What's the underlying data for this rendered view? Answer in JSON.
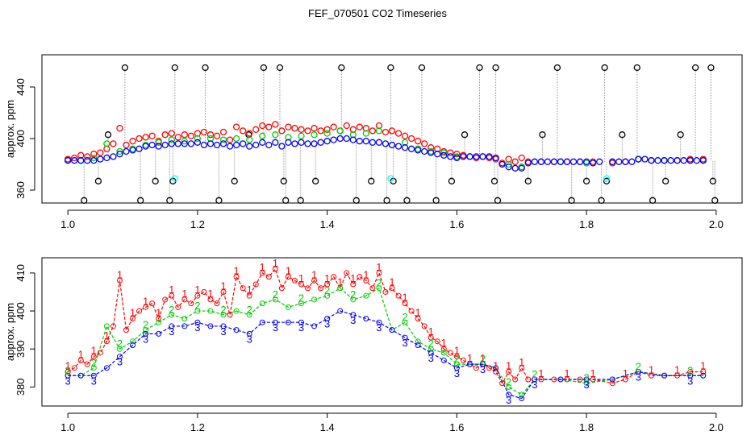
{
  "title": "FEF_070501  CO2 Timeseries",
  "colors": {
    "black": "#000000",
    "red": "#ff0000",
    "green": "#00cc00",
    "blue": "#0000ff",
    "cyan": "#00ffff",
    "gray": "#888888"
  },
  "chart_data": [
    {
      "type": "scatter",
      "title": "FEF_070501  CO2 Timeseries",
      "xlabel": "",
      "ylabel": "approx. ppm",
      "xlim": [
        0.96,
        2.04
      ],
      "ylim": [
        350,
        465
      ],
      "xticks": [
        1.0,
        1.2,
        1.4,
        1.6,
        1.8,
        2.0
      ],
      "xtick_labels": [
        "1.0",
        "1.2",
        "1.4",
        "1.6",
        "1.8",
        "2.0"
      ],
      "yticks": [
        360,
        400,
        440
      ],
      "ytick_labels": [
        "360",
        "400",
        "440"
      ],
      "series": [
        {
          "name": "black",
          "marker": "circle",
          "color": "#000000",
          "x": [
            1.025,
            1.047,
            1.062,
            1.088,
            1.112,
            1.135,
            1.157,
            1.162,
            1.165,
            1.212,
            1.233,
            1.257,
            1.279,
            1.302,
            1.327,
            1.333,
            1.336,
            1.359,
            1.382,
            1.422,
            1.445,
            1.468,
            1.492,
            1.498,
            1.502,
            1.523,
            1.546,
            1.568,
            1.592,
            1.612,
            1.635,
            1.658,
            1.66,
            1.663,
            1.71,
            1.732,
            1.755,
            1.777,
            1.8,
            1.823,
            1.828,
            1.831,
            1.855,
            1.878,
            1.902,
            1.922,
            1.945,
            1.968,
            1.992,
            1.995,
            1.998
          ],
          "y": [
            352,
            367,
            403,
            455,
            352,
            367,
            352,
            367,
            455,
            455,
            352,
            367,
            403,
            455,
            455,
            367,
            352,
            352,
            367,
            455,
            352,
            367,
            352,
            455,
            367,
            352,
            455,
            352,
            367,
            403,
            455,
            367,
            455,
            352,
            367,
            403,
            455,
            352,
            367,
            352,
            455,
            367,
            403,
            455,
            352,
            367,
            403,
            455,
            455,
            367,
            352
          ]
        },
        {
          "name": "red",
          "marker": "circle",
          "color": "#ff0000",
          "x": [
            1.0,
            1.01,
            1.02,
            1.03,
            1.04,
            1.05,
            1.06,
            1.07,
            1.08,
            1.09,
            1.1,
            1.11,
            1.12,
            1.13,
            1.14,
            1.15,
            1.16,
            1.17,
            1.18,
            1.19,
            1.2,
            1.21,
            1.22,
            1.23,
            1.24,
            1.25,
            1.26,
            1.27,
            1.28,
            1.29,
            1.3,
            1.31,
            1.32,
            1.33,
            1.34,
            1.35,
            1.36,
            1.37,
            1.38,
            1.39,
            1.4,
            1.41,
            1.42,
            1.43,
            1.44,
            1.45,
            1.46,
            1.47,
            1.48,
            1.49,
            1.5,
            1.51,
            1.52,
            1.53,
            1.54,
            1.55,
            1.56,
            1.57,
            1.58,
            1.59,
            1.6,
            1.61,
            1.62,
            1.63,
            1.64,
            1.65,
            1.66,
            1.67,
            1.68,
            1.69,
            1.7,
            1.71,
            1.73,
            1.75,
            1.77,
            1.79,
            1.81,
            1.84,
            1.86,
            1.88,
            1.9,
            1.92,
            1.94,
            1.96,
            1.98
          ],
          "y": [
            384,
            385,
            387,
            386,
            388,
            389,
            392,
            396,
            408,
            395,
            398,
            400,
            401,
            402,
            398,
            403,
            404,
            401,
            403,
            402,
            404,
            405,
            403,
            402,
            405,
            399,
            409,
            406,
            404,
            407,
            410,
            409,
            411,
            406,
            409,
            408,
            407,
            406,
            408,
            406,
            407,
            409,
            406,
            410,
            407,
            409,
            408,
            406,
            410,
            405,
            406,
            404,
            402,
            400,
            398,
            396,
            393,
            392,
            390,
            389,
            388,
            387,
            386,
            385,
            386,
            385,
            384,
            381,
            384,
            382,
            385,
            382,
            382,
            382,
            382,
            382,
            382,
            381,
            382,
            384,
            383,
            383,
            383,
            384,
            384
          ]
        },
        {
          "name": "green",
          "marker": "circle",
          "color": "#00cc00",
          "x": [
            1.0,
            1.02,
            1.04,
            1.06,
            1.08,
            1.1,
            1.12,
            1.14,
            1.16,
            1.18,
            1.2,
            1.22,
            1.24,
            1.26,
            1.28,
            1.3,
            1.32,
            1.34,
            1.36,
            1.38,
            1.4,
            1.42,
            1.44,
            1.46,
            1.48,
            1.5,
            1.52,
            1.54,
            1.56,
            1.58,
            1.6,
            1.62,
            1.64,
            1.66,
            1.68,
            1.7,
            1.72,
            1.76,
            1.8,
            1.84,
            1.88,
            1.92,
            1.96,
            1.98
          ],
          "y": [
            383,
            383,
            385,
            396,
            390,
            392,
            395,
            397,
            399,
            398,
            400,
            400,
            399,
            400,
            399,
            402,
            403,
            401,
            402,
            403,
            404,
            406,
            403,
            404,
            406,
            395,
            397,
            392,
            390,
            389,
            386,
            386,
            386,
            385,
            380,
            378,
            382,
            382,
            381,
            382,
            384,
            383,
            383,
            383
          ]
        },
        {
          "name": "blue",
          "marker": "circle",
          "color": "#0000ff",
          "x": [
            1.0,
            1.01,
            1.02,
            1.03,
            1.04,
            1.05,
            1.06,
            1.07,
            1.08,
            1.09,
            1.1,
            1.11,
            1.12,
            1.13,
            1.14,
            1.15,
            1.16,
            1.17,
            1.18,
            1.19,
            1.2,
            1.21,
            1.22,
            1.23,
            1.24,
            1.25,
            1.26,
            1.27,
            1.28,
            1.29,
            1.3,
            1.31,
            1.32,
            1.33,
            1.34,
            1.35,
            1.36,
            1.37,
            1.38,
            1.39,
            1.4,
            1.41,
            1.42,
            1.43,
            1.44,
            1.45,
            1.46,
            1.47,
            1.48,
            1.49,
            1.5,
            1.51,
            1.52,
            1.53,
            1.54,
            1.55,
            1.56,
            1.57,
            1.58,
            1.59,
            1.6,
            1.61,
            1.62,
            1.63,
            1.64,
            1.65,
            1.66,
            1.67,
            1.68,
            1.69,
            1.7,
            1.71,
            1.72,
            1.73,
            1.74,
            1.75,
            1.76,
            1.77,
            1.78,
            1.79,
            1.8,
            1.81,
            1.82,
            1.84,
            1.85,
            1.86,
            1.87,
            1.88,
            1.89,
            1.9,
            1.91,
            1.92,
            1.93,
            1.94,
            1.95,
            1.96,
            1.97,
            1.98
          ],
          "y": [
            383,
            383,
            383,
            383,
            383,
            384,
            385,
            386,
            388,
            390,
            391,
            392,
            394,
            395,
            394,
            395,
            396,
            396,
            396,
            396,
            397,
            395,
            396,
            395,
            396,
            394,
            395,
            396,
            394,
            395,
            397,
            395,
            397,
            394,
            397,
            396,
            397,
            396,
            396,
            397,
            398,
            399,
            400,
            400,
            399,
            398,
            398,
            397,
            397,
            396,
            395,
            394,
            393,
            392,
            391,
            390,
            389,
            388,
            387,
            386,
            385,
            386,
            386,
            386,
            386,
            386,
            385,
            380,
            378,
            377,
            377,
            381,
            382,
            382,
            382,
            382,
            382,
            382,
            382,
            382,
            382,
            381,
            382,
            382,
            382,
            382,
            382,
            384,
            384,
            383,
            383,
            383,
            383,
            383,
            383,
            383,
            383,
            383
          ]
        },
        {
          "name": "cyan",
          "marker": "circle",
          "color": "#00ffff",
          "x": [
            1.165,
            1.498,
            1.831
          ],
          "y": [
            369,
            369,
            369
          ]
        }
      ]
    },
    {
      "type": "line",
      "title": "",
      "xlabel": "",
      "ylabel": "approx. ppm",
      "xlim": [
        0.96,
        2.04
      ],
      "ylim": [
        375,
        414
      ],
      "xticks": [
        1.0,
        1.2,
        1.4,
        1.6,
        1.8,
        2.0
      ],
      "xtick_labels": [
        "1.0",
        "1.2",
        "1.4",
        "1.6",
        "1.8",
        "2.0"
      ],
      "yticks": [
        380,
        390,
        400,
        410
      ],
      "ytick_labels": [
        "380",
        "390",
        "400",
        "410"
      ],
      "series": [
        {
          "name": "1",
          "label": "1",
          "color": "#ff0000",
          "line": "dashed",
          "x": [
            1.0,
            1.01,
            1.02,
            1.03,
            1.04,
            1.05,
            1.06,
            1.07,
            1.08,
            1.09,
            1.1,
            1.11,
            1.12,
            1.13,
            1.14,
            1.15,
            1.16,
            1.17,
            1.18,
            1.19,
            1.2,
            1.21,
            1.22,
            1.23,
            1.24,
            1.25,
            1.26,
            1.27,
            1.28,
            1.29,
            1.3,
            1.31,
            1.32,
            1.33,
            1.34,
            1.35,
            1.36,
            1.37,
            1.38,
            1.39,
            1.4,
            1.41,
            1.42,
            1.43,
            1.44,
            1.45,
            1.46,
            1.47,
            1.48,
            1.49,
            1.5,
            1.51,
            1.52,
            1.53,
            1.54,
            1.55,
            1.56,
            1.57,
            1.58,
            1.59,
            1.6,
            1.61,
            1.62,
            1.63,
            1.64,
            1.65,
            1.66,
            1.67,
            1.68,
            1.69,
            1.7,
            1.71,
            1.73,
            1.75,
            1.77,
            1.79,
            1.81,
            1.84,
            1.86,
            1.88,
            1.9,
            1.92,
            1.94,
            1.96,
            1.98
          ],
          "y": [
            384,
            385,
            387,
            386,
            388,
            389,
            392,
            396,
            408,
            395,
            398,
            400,
            401,
            402,
            398,
            403,
            404,
            401,
            403,
            402,
            404,
            405,
            403,
            402,
            405,
            399,
            409,
            406,
            404,
            407,
            410,
            409,
            411,
            406,
            409,
            408,
            407,
            406,
            408,
            406,
            407,
            409,
            406,
            410,
            407,
            409,
            408,
            406,
            410,
            405,
            406,
            404,
            402,
            400,
            398,
            396,
            393,
            392,
            390,
            389,
            388,
            387,
            386,
            385,
            386,
            385,
            384,
            381,
            384,
            382,
            385,
            382,
            382,
            382,
            382,
            382,
            382,
            381,
            382,
            384,
            383,
            383,
            383,
            384,
            384
          ]
        },
        {
          "name": "2",
          "label": "2",
          "color": "#00cc00",
          "line": "dashed",
          "x": [
            1.0,
            1.02,
            1.04,
            1.06,
            1.08,
            1.1,
            1.12,
            1.14,
            1.16,
            1.18,
            1.2,
            1.22,
            1.24,
            1.26,
            1.28,
            1.3,
            1.32,
            1.34,
            1.36,
            1.38,
            1.4,
            1.42,
            1.44,
            1.46,
            1.48,
            1.5,
            1.52,
            1.54,
            1.56,
            1.58,
            1.6,
            1.62,
            1.64,
            1.66,
            1.68,
            1.7,
            1.72,
            1.76,
            1.8,
            1.84,
            1.88,
            1.92,
            1.96,
            1.98
          ],
          "y": [
            383,
            383,
            385,
            396,
            390,
            392,
            395,
            397,
            399,
            398,
            400,
            400,
            399,
            400,
            399,
            402,
            403,
            401,
            402,
            403,
            404,
            406,
            403,
            404,
            406,
            395,
            397,
            392,
            390,
            389,
            386,
            386,
            386,
            385,
            380,
            378,
            382,
            382,
            381,
            382,
            384,
            383,
            383,
            383
          ]
        },
        {
          "name": "3",
          "label": "3",
          "color": "#0000ff",
          "line": "dashed",
          "x": [
            1.0,
            1.02,
            1.04,
            1.06,
            1.08,
            1.1,
            1.12,
            1.14,
            1.16,
            1.18,
            1.2,
            1.22,
            1.24,
            1.26,
            1.28,
            1.3,
            1.32,
            1.34,
            1.36,
            1.38,
            1.4,
            1.42,
            1.44,
            1.46,
            1.48,
            1.5,
            1.52,
            1.54,
            1.56,
            1.58,
            1.6,
            1.62,
            1.64,
            1.66,
            1.68,
            1.7,
            1.72,
            1.76,
            1.8,
            1.84,
            1.88,
            1.92,
            1.96,
            1.98
          ],
          "y": [
            383,
            383,
            383,
            385,
            388,
            391,
            394,
            394,
            396,
            396,
            397,
            396,
            396,
            395,
            394,
            397,
            397,
            397,
            397,
            396,
            398,
            400,
            399,
            398,
            397,
            395,
            393,
            391,
            389,
            387,
            385,
            386,
            386,
            385,
            378,
            377,
            382,
            382,
            382,
            382,
            384,
            383,
            383,
            383
          ]
        }
      ]
    }
  ]
}
